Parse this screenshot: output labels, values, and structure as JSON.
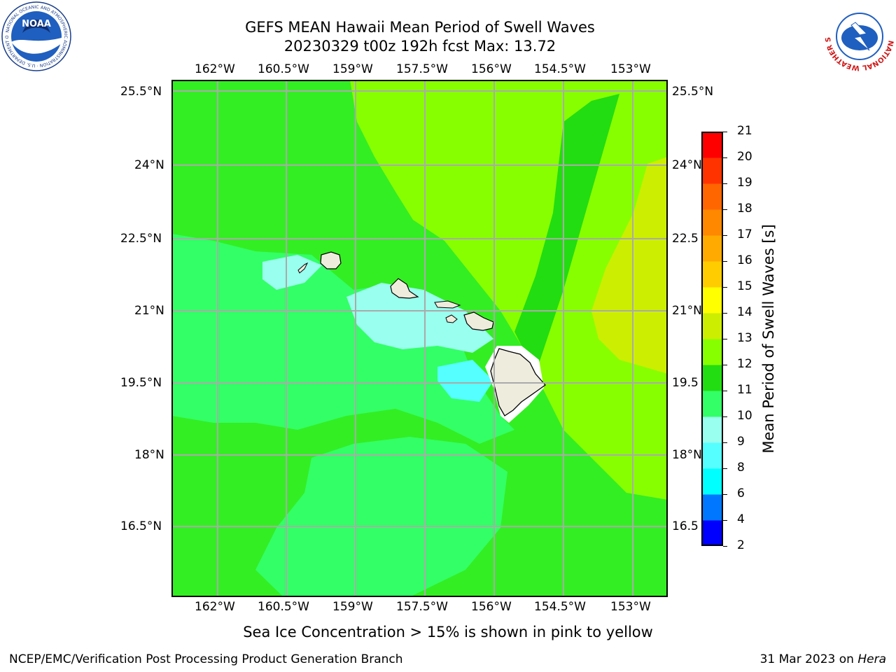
{
  "header": {
    "title_line1": "GEFS MEAN Hawaii Mean Period of Swell Waves",
    "title_line2": "20230329 t00z 192h fcst   Max: 13.72"
  },
  "logos": {
    "left": {
      "name": "noaa-logo",
      "text": "NOAA",
      "ring_text": "NATIONAL OCEANIC AND ATMOSPHERIC ADMINISTRATION · U.S. DEPARTMENT OF COMMERCE"
    },
    "right": {
      "name": "nws-logo",
      "ring_text": "NATIONAL WEATHER SERVICE"
    }
  },
  "map": {
    "lon_labels": [
      "162°W",
      "160.5°W",
      "159°W",
      "157.5°W",
      "156°W",
      "154.5°W",
      "153°W"
    ],
    "lat_labels": [
      "25.5°N",
      "24°N",
      "22.5°N",
      "21°N",
      "19.5°N",
      "18°N",
      "16.5°N"
    ],
    "right_lat_labels": [
      "25.5°N",
      "24°N",
      "22.5",
      "21°N",
      "19.5",
      "18°N",
      "16.5"
    ],
    "background_color": "#33ee22"
  },
  "colorbar": {
    "label": "Mean Period of Swell Waves [s]",
    "ticks": [
      "2",
      "4",
      "6",
      "8",
      "9",
      "10",
      "11",
      "12",
      "13",
      "14",
      "15",
      "16",
      "17",
      "18",
      "19",
      "20",
      "21"
    ],
    "colors": [
      "#0000ff",
      "#0077ff",
      "#00ffff",
      "#55ffff",
      "#99ffee",
      "#33ff66",
      "#22dd11",
      "#88ff00",
      "#ccee00",
      "#ffff00",
      "#ffcc00",
      "#ffaa00",
      "#ff8800",
      "#ff6600",
      "#ff3300",
      "#ff0000"
    ]
  },
  "caption": "Sea Ice Concentration > 15% is shown in pink to yellow",
  "footer": {
    "left": "NCEP/EMC/Verification Post Processing Product Generation Branch",
    "right_date": "31 Mar 2023 on ",
    "right_machine": "Hera"
  }
}
